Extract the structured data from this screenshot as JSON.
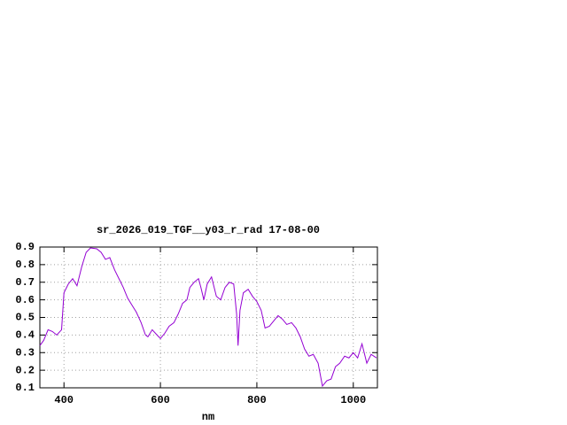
{
  "chart_data": {
    "type": "line",
    "title": "sr_2026_019_TGF__y03_r_rad 17-08-00",
    "x_label": "nm",
    "x": [
      350,
      358,
      367,
      376,
      385,
      395,
      400,
      409,
      418,
      427,
      437,
      446,
      455,
      468,
      477,
      486,
      495,
      505,
      514,
      523,
      532,
      541,
      550,
      560,
      569,
      574,
      583,
      593,
      600,
      609,
      618,
      628,
      637,
      646,
      655,
      661,
      670,
      679,
      684,
      690,
      697,
      706,
      716,
      725,
      734,
      743,
      752,
      758,
      761,
      765,
      772,
      782,
      791,
      800,
      809,
      817,
      826,
      835,
      844,
      853,
      862,
      872,
      881,
      890,
      899,
      908,
      917,
      927,
      936,
      945,
      954,
      963,
      972,
      982,
      991,
      1000,
      1009,
      1018,
      1028,
      1037,
      1048
    ],
    "series": [
      {
        "color": "#9400d3",
        "values": [
          0.34,
          0.37,
          0.43,
          0.42,
          0.4,
          0.43,
          0.64,
          0.69,
          0.72,
          0.68,
          0.79,
          0.87,
          0.895,
          0.89,
          0.87,
          0.83,
          0.84,
          0.77,
          0.72,
          0.67,
          0.61,
          0.57,
          0.53,
          0.47,
          0.4,
          0.39,
          0.43,
          0.4,
          0.38,
          0.41,
          0.45,
          0.47,
          0.52,
          0.58,
          0.6,
          0.67,
          0.7,
          0.72,
          0.67,
          0.6,
          0.69,
          0.73,
          0.62,
          0.6,
          0.67,
          0.7,
          0.69,
          0.52,
          0.34,
          0.54,
          0.64,
          0.66,
          0.62,
          0.59,
          0.54,
          0.44,
          0.45,
          0.48,
          0.51,
          0.49,
          0.46,
          0.47,
          0.44,
          0.39,
          0.32,
          0.28,
          0.29,
          0.24,
          0.11,
          0.14,
          0.15,
          0.22,
          0.24,
          0.28,
          0.27,
          0.3,
          0.27,
          0.35,
          0.24,
          0.29,
          0.27
        ]
      }
    ],
    "xlim": [
      350,
      1050
    ],
    "xticks": [
      400,
      600,
      800,
      1000
    ],
    "ylim": [
      0.1,
      0.9
    ],
    "yticks": [
      0.1,
      0.2,
      0.3,
      0.4,
      0.5,
      0.6,
      0.7,
      0.8,
      0.9
    ],
    "grid": true
  }
}
